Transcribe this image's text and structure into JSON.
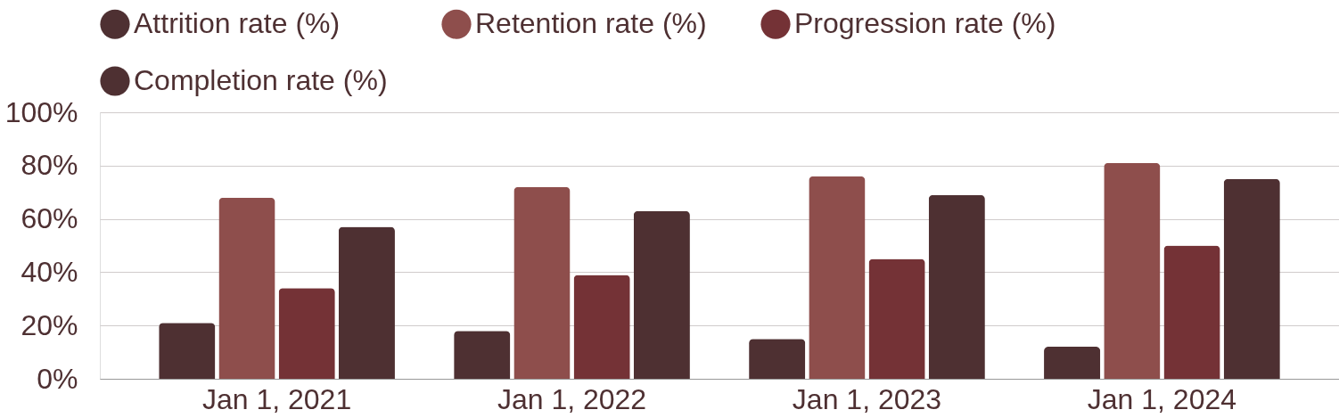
{
  "chart_data": {
    "type": "bar",
    "categories": [
      "Jan 1, 2021",
      "Jan 1, 2022",
      "Jan 1, 2023",
      "Jan 1, 2024"
    ],
    "series": [
      {
        "name": "Attrition rate (%)",
        "color": "#4e3032",
        "values": [
          21,
          18,
          15,
          12
        ]
      },
      {
        "name": "Retention rate (%)",
        "color": "#8e4e4c",
        "values": [
          68,
          72,
          76,
          81
        ]
      },
      {
        "name": "Progression rate (%)",
        "color": "#743236",
        "values": [
          34,
          39,
          45,
          50
        ]
      },
      {
        "name": "Completion rate (%)",
        "color": "#4e3032",
        "values": [
          57,
          63,
          69,
          75
        ]
      }
    ],
    "ylim": [
      0,
      100
    ],
    "yticks": [
      {
        "value": 0,
        "label": "0%"
      },
      {
        "value": 20,
        "label": "20%"
      },
      {
        "value": 40,
        "label": "40%"
      },
      {
        "value": 60,
        "label": "60%"
      },
      {
        "value": 80,
        "label": "80%"
      },
      {
        "value": 100,
        "label": "100%"
      }
    ],
    "grid": "y",
    "legend": "top"
  }
}
